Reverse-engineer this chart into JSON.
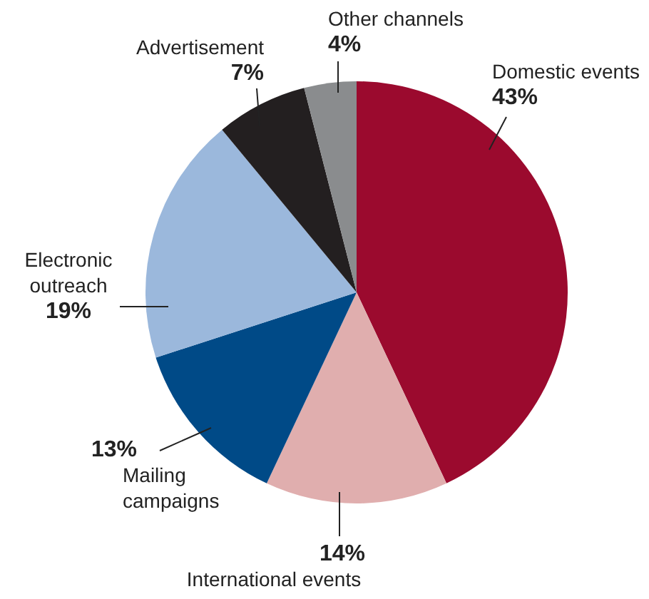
{
  "chart_data": {
    "type": "pie",
    "categories": [
      "Domestic events",
      "International events",
      "Mailing campaigns",
      "Electronic outreach",
      "Advertisement",
      "Other channels"
    ],
    "values": [
      43,
      14,
      13,
      19,
      7,
      4
    ],
    "value_labels": [
      "43%",
      "14%",
      "13%",
      "19%",
      "7%",
      "4%"
    ],
    "colors": [
      "#9b0a2e",
      "#e0aeae",
      "#004a87",
      "#9bb8dc",
      "#231f20",
      "#8a8c8e"
    ]
  }
}
